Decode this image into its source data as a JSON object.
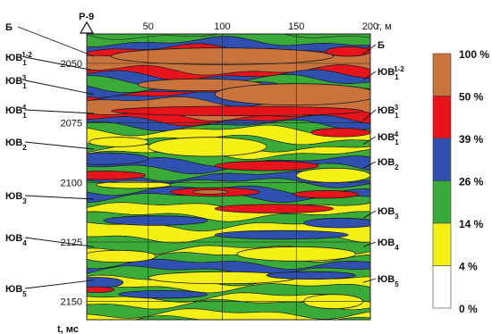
{
  "chart_data": {
    "type": "heatmap",
    "well_label": "Р-9",
    "x_unit_label": "r, м",
    "y_unit_label": "t, мс",
    "x_ticks": [
      50,
      100,
      150,
      200
    ],
    "y_ticks": [
      2050,
      2075,
      2100,
      2125,
      2150
    ],
    "xlim": [
      0,
      200
    ],
    "ylim": [
      2038,
      2158
    ],
    "grid": true,
    "legend_position": "right",
    "legend": [
      {
        "label": "100 %",
        "color": "#c8743c"
      },
      {
        "label": "50 %",
        "color": "#e8141c"
      },
      {
        "label": "39 %",
        "color": "#3050b0"
      },
      {
        "label": "26 %",
        "color": "#3aaa38"
      },
      {
        "label": "14 %",
        "color": "#f4f014"
      },
      {
        "label": "4 %",
        "color": "#ffffff"
      },
      {
        "label": "0 %",
        "color": "#ffffff"
      }
    ],
    "horizon_labels_left": [
      {
        "base": "Б",
        "sub": "",
        "sup": "",
        "t": 2047
      },
      {
        "base": "ЮВ",
        "sub": "1",
        "sup": "1-2",
        "t": 2053
      },
      {
        "base": "ЮВ",
        "sub": "1",
        "sup": "3",
        "t": 2063
      },
      {
        "base": "ЮВ",
        "sub": "1",
        "sup": "4",
        "t": 2071
      },
      {
        "base": "ЮВ",
        "sub": "2",
        "sup": "",
        "t": 2086
      },
      {
        "base": "ЮВ",
        "sub": "3",
        "sup": "",
        "t": 2107
      },
      {
        "base": "ЮВ",
        "sub": "4",
        "sup": "",
        "t": 2127
      },
      {
        "base": "ЮВ",
        "sub": "5",
        "sup": "",
        "t": 2141
      }
    ],
    "horizon_labels_right": [
      {
        "base": "Б",
        "sub": "",
        "sup": "",
        "t": 2046
      },
      {
        "base": "ЮВ",
        "sub": "1",
        "sup": "1-2",
        "t": 2057
      },
      {
        "base": "ЮВ",
        "sub": "1",
        "sup": "3",
        "t": 2074
      },
      {
        "base": "ЮВ",
        "sub": "1",
        "sup": "4",
        "t": 2084
      },
      {
        "base": "ЮВ",
        "sub": "2",
        "sup": "",
        "t": 2094
      },
      {
        "base": "ЮВ",
        "sub": "3",
        "sup": "",
        "t": 2115
      },
      {
        "base": "ЮВ",
        "sub": "4",
        "sup": "",
        "t": 2127
      },
      {
        "base": "ЮВ",
        "sub": "5",
        "sup": "",
        "t": 2142
      }
    ],
    "bands": [
      {
        "level": 3,
        "t_top": 2038,
        "t_bot": 2041
      },
      {
        "level": 2,
        "t_top": 2041,
        "t_bot": 2044
      },
      {
        "level": 1,
        "t_top": 2044,
        "t_bot": 2047
      },
      {
        "level": 0,
        "t_top": 2047,
        "t_bot": 2053
      },
      {
        "level": 1,
        "t_top": 2053,
        "t_bot": 2055
      },
      {
        "level": 2,
        "t_top": 2055,
        "t_bot": 2057
      },
      {
        "level": 3,
        "t_top": 2057,
        "t_bot": 2060
      },
      {
        "level": 2,
        "t_top": 2060,
        "t_bot": 2062
      },
      {
        "level": 1,
        "t_top": 2062,
        "t_bot": 2064
      },
      {
        "level": 2,
        "t_top": 2064,
        "t_bot": 2066
      },
      {
        "level": 0,
        "t_top": 2066,
        "t_bot": 2072
      },
      {
        "level": 1,
        "t_top": 2072,
        "t_bot": 2074
      },
      {
        "level": 2,
        "t_top": 2074,
        "t_bot": 2076
      },
      {
        "level": 3,
        "t_top": 2076,
        "t_bot": 2078
      },
      {
        "level": 4,
        "t_top": 2078,
        "t_bot": 2082
      },
      {
        "level": 3,
        "t_top": 2082,
        "t_bot": 2085
      },
      {
        "level": 4,
        "t_top": 2085,
        "t_bot": 2088
      },
      {
        "level": 3,
        "t_top": 2088,
        "t_bot": 2091
      },
      {
        "level": 2,
        "t_top": 2091,
        "t_bot": 2094
      },
      {
        "level": 3,
        "t_top": 2094,
        "t_bot": 2097
      },
      {
        "level": 2,
        "t_top": 2097,
        "t_bot": 2100
      },
      {
        "level": 3,
        "t_top": 2100,
        "t_bot": 2103
      },
      {
        "level": 2,
        "t_top": 2103,
        "t_bot": 2106
      },
      {
        "level": 3,
        "t_top": 2106,
        "t_bot": 2110
      },
      {
        "level": 4,
        "t_top": 2110,
        "t_bot": 2114
      },
      {
        "level": 3,
        "t_top": 2114,
        "t_bot": 2118
      },
      {
        "level": 4,
        "t_top": 2118,
        "t_bot": 2123
      },
      {
        "level": 3,
        "t_top": 2123,
        "t_bot": 2128
      },
      {
        "level": 4,
        "t_top": 2128,
        "t_bot": 2131
      },
      {
        "level": 3,
        "t_top": 2131,
        "t_bot": 2134
      },
      {
        "level": 2,
        "t_top": 2134,
        "t_bot": 2137
      },
      {
        "level": 3,
        "t_top": 2137,
        "t_bot": 2141
      },
      {
        "level": 4,
        "t_top": 2141,
        "t_bot": 2144
      },
      {
        "level": 3,
        "t_top": 2144,
        "t_bot": 2148
      },
      {
        "level": 4,
        "t_top": 2148,
        "t_bot": 2151
      },
      {
        "level": 3,
        "t_top": 2151,
        "t_bot": 2155
      },
      {
        "level": 4,
        "t_top": 2155,
        "t_bot": 2158
      }
    ],
    "lenses": [
      {
        "level": 0,
        "r": 100,
        "t": 2047,
        "rr": 75,
        "rt": 3.5
      },
      {
        "level": 0,
        "r": 85,
        "t": 2059,
        "rr": 42,
        "rt": 2.5
      },
      {
        "level": 0,
        "r": 150,
        "t": 2063,
        "rr": 55,
        "rt": 4.5
      },
      {
        "level": 1,
        "r": 110,
        "t": 2070,
        "rr": 85,
        "rt": 2.0
      },
      {
        "level": 1,
        "r": 20,
        "t": 2097,
        "rr": 28,
        "rt": 1.8
      },
      {
        "level": 1,
        "r": 130,
        "t": 2093,
        "rr": 35,
        "rt": 2.0
      },
      {
        "level": 1,
        "r": 95,
        "t": 2104,
        "rr": 30,
        "rt": 1.8
      },
      {
        "level": 0,
        "r": 92,
        "t": 2104,
        "rr": 12,
        "rt": 0.9
      },
      {
        "level": 1,
        "r": 170,
        "t": 2105,
        "rr": 22,
        "rt": 1.6
      },
      {
        "level": 1,
        "r": 135,
        "t": 2111,
        "rr": 40,
        "rt": 1.8
      },
      {
        "level": 2,
        "r": 20,
        "t": 2090,
        "rr": 30,
        "rt": 2.5
      },
      {
        "level": 2,
        "r": 55,
        "t": 2116,
        "rr": 35,
        "rt": 2.0
      },
      {
        "level": 2,
        "r": 180,
        "t": 2117,
        "rr": 25,
        "rt": 2.0
      },
      {
        "level": 2,
        "r": 140,
        "t": 2122,
        "rr": 45,
        "rt": 1.8
      },
      {
        "level": 4,
        "r": 90,
        "t": 2085,
        "rr": 40,
        "rt": 4.0
      },
      {
        "level": 4,
        "r": 30,
        "t": 2083,
        "rr": 20,
        "rt": 2.0
      },
      {
        "level": 4,
        "r": 175,
        "t": 2097,
        "rr": 25,
        "rt": 3.0
      },
      {
        "level": 4,
        "r": 40,
        "t": 2101,
        "rr": 25,
        "rt": 1.5
      },
      {
        "level": 4,
        "r": 150,
        "t": 2130,
        "rr": 40,
        "rt": 3.0
      },
      {
        "level": 4,
        "r": 30,
        "t": 2131,
        "rr": 25,
        "rt": 2.5
      },
      {
        "level": 4,
        "r": 100,
        "t": 2140,
        "rr": 50,
        "rt": 2.5
      },
      {
        "level": 4,
        "r": 175,
        "t": 2150,
        "rr": 20,
        "rt": 3.0
      },
      {
        "level": 2,
        "r": 15,
        "t": 2142,
        "rr": 18,
        "rt": 2.2
      },
      {
        "level": 1,
        "r": 15,
        "t": 2145,
        "rr": 12,
        "rt": 1.2
      },
      {
        "level": 2,
        "r": 60,
        "t": 2147,
        "rr": 30,
        "rt": 1.6
      },
      {
        "level": 2,
        "r": 160,
        "t": 2139,
        "rr": 30,
        "rt": 1.6
      },
      {
        "level": 1,
        "r": 185,
        "t": 2045,
        "rr": 15,
        "rt": 2.0
      },
      {
        "level": 1,
        "r": 180,
        "t": 2079,
        "rr": 20,
        "rt": 1.8
      }
    ]
  }
}
